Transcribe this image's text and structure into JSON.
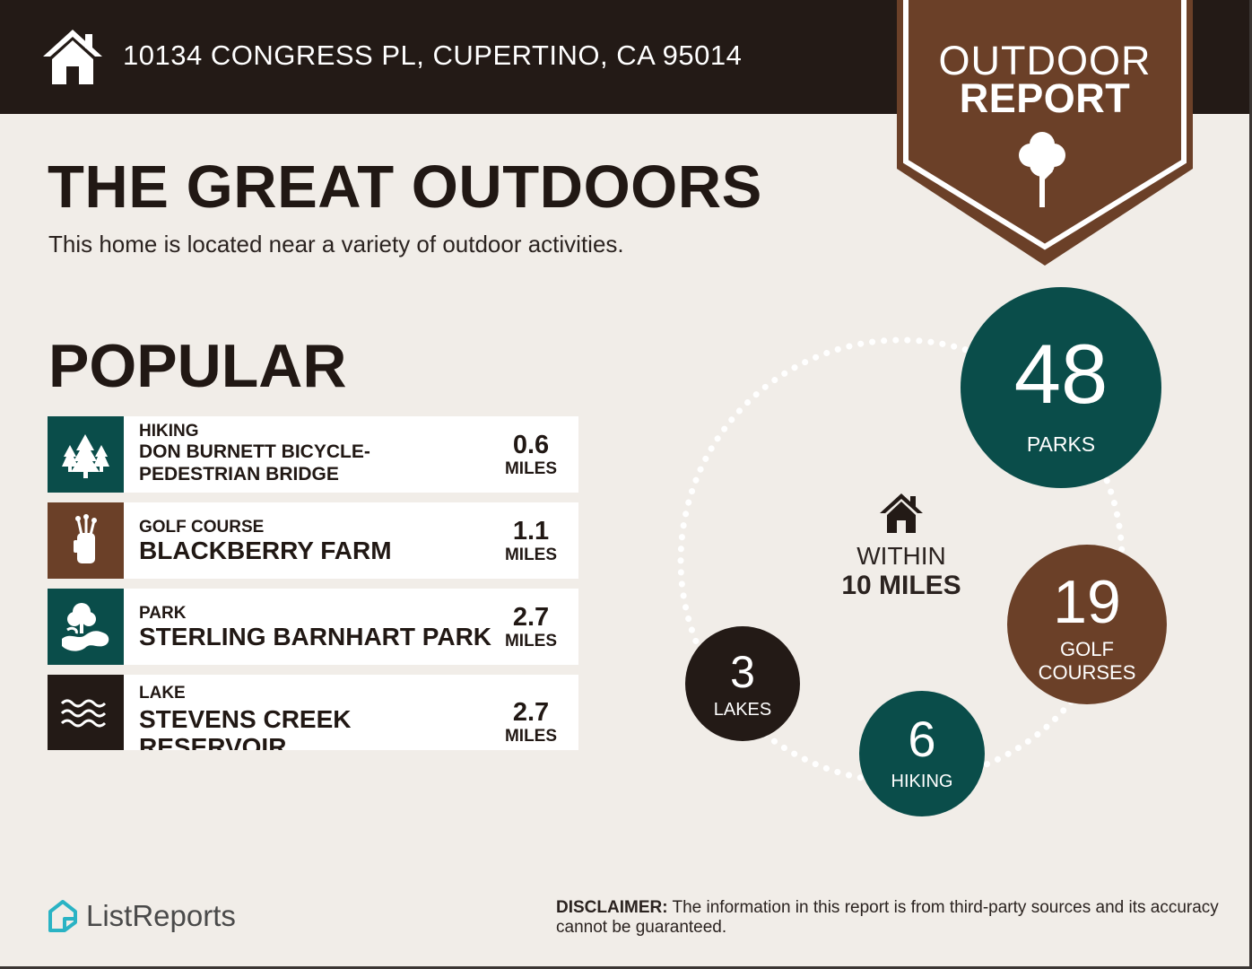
{
  "header": {
    "address": "10134 CONGRESS PL, CUPERTINO, CA 95014",
    "icon": "house-icon"
  },
  "badge": {
    "line1": "OUTDOOR",
    "line2": "REPORT",
    "icon": "tree-icon",
    "color": "#6b4028"
  },
  "title": "THE GREAT OUTDOORS",
  "subtitle": "This home is located near a variety of outdoor activities.",
  "section_title": "POPULAR",
  "activities": [
    {
      "category": "HIKING",
      "name_line1": "DON BURNETT BICYCLE-",
      "name_line2": "PEDESTRIAN BRIDGE",
      "distance": "0.6",
      "unit": "MILES",
      "icon": "trees-icon",
      "color": "#0a4d4a"
    },
    {
      "category": "GOLF COURSE",
      "name_line1": "BLACKBERRY FARM",
      "name_line2": "",
      "distance": "1.1",
      "unit": "MILES",
      "icon": "golf-bag-icon",
      "color": "#6b4028"
    },
    {
      "category": "PARK",
      "name_line1": "STERLING BARNHART PARK",
      "name_line2": "",
      "distance": "2.7",
      "unit": "MILES",
      "icon": "park-icon",
      "color": "#0a4d4a"
    },
    {
      "category": "LAKE",
      "name_line1": "STEVENS CREEK",
      "name_line2": "RESERVOIR",
      "distance": "2.7",
      "unit": "MILES",
      "icon": "waves-icon",
      "color": "#231a16"
    }
  ],
  "stats": {
    "center_label": "WITHIN",
    "center_value": "10 MILES",
    "parks": {
      "number": "48",
      "label": "PARKS",
      "color": "#0a4d4a"
    },
    "golf": {
      "number": "19",
      "label_line1": "GOLF",
      "label_line2": "COURSES",
      "color": "#6b4028"
    },
    "hiking": {
      "number": "6",
      "label": "HIKING",
      "color": "#0a4d4a"
    },
    "lakes": {
      "number": "3",
      "label": "LAKES",
      "color": "#231a16"
    }
  },
  "footer": {
    "logo_text": "ListReports",
    "disclaimer_label": "DISCLAIMER:",
    "disclaimer_text": " The information in this report is from third-party sources and its accuracy cannot be guaranteed."
  },
  "colors": {
    "dark": "#231a16",
    "teal": "#0a4d4a",
    "brown": "#6b4028",
    "background": "#f1ede8"
  }
}
